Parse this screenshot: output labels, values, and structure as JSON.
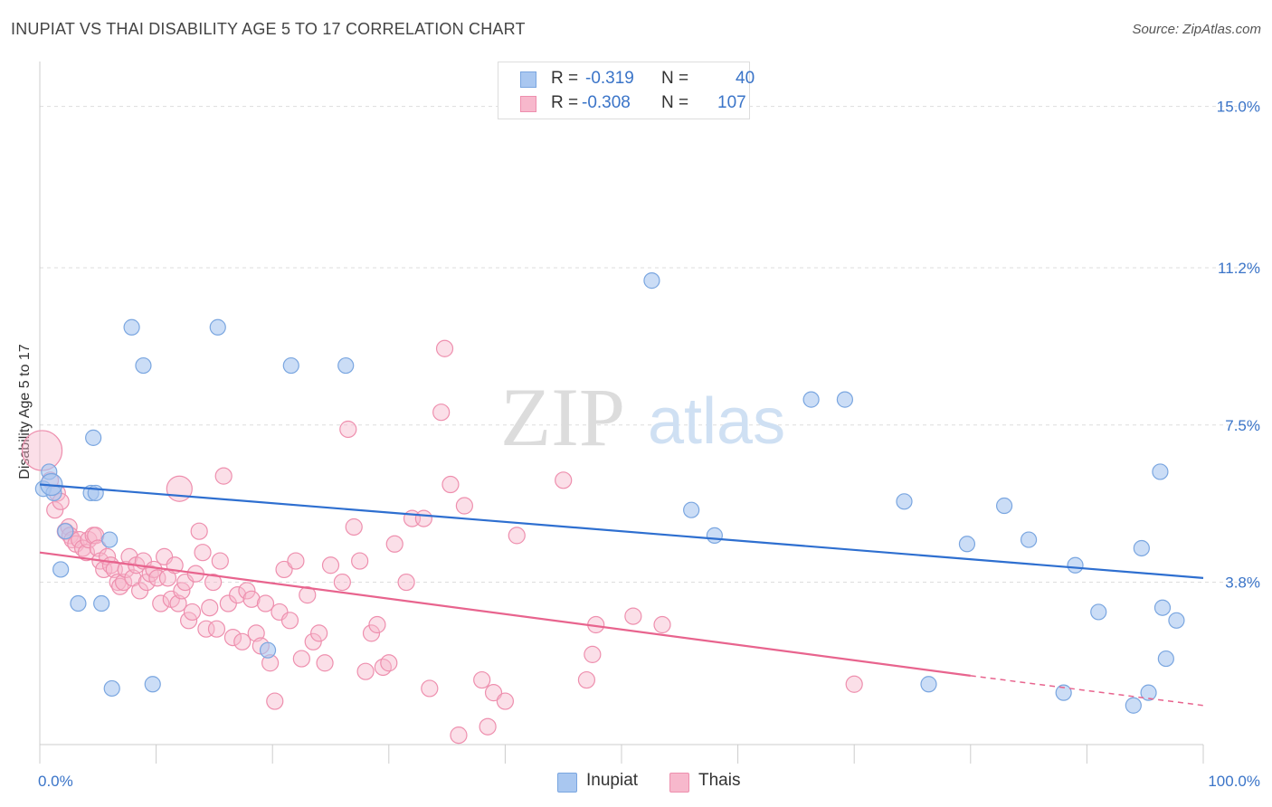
{
  "title": "INUPIAT VS THAI DISABILITY AGE 5 TO 17 CORRELATION CHART",
  "source": "Source: ZipAtlas.com",
  "watermark": {
    "zip": "ZIP",
    "atlas": "atlas"
  },
  "colors": {
    "inupiat_fill": "#a9c7f0",
    "inupiat_stroke": "#7aa6e0",
    "inupiat_line": "#2e6fd0",
    "thais_fill": "#f7b8cc",
    "thais_stroke": "#ee8fae",
    "thais_line": "#e8648e",
    "tick_label": "#3a74c8",
    "grid": "#dddddd"
  },
  "legend": {
    "rows": [
      {
        "r_label": "R =",
        "r_value": "-0.319",
        "n_label": "N =",
        "n_value": "40"
      },
      {
        "r_label": "R =",
        "r_value": "-0.308",
        "n_label": "N =",
        "n_value": "107"
      }
    ]
  },
  "chart_data": {
    "type": "scatter",
    "title": "INUPIAT VS THAI DISABILITY AGE 5 TO 17 CORRELATION CHART",
    "xlabel": "",
    "ylabel": "Disability Age 5 to 17",
    "xlim": [
      0,
      100
    ],
    "ylim": [
      0,
      15.8
    ],
    "x_tick_labels": [
      "0.0%",
      "100.0%"
    ],
    "y_ticks": [
      3.8,
      7.5,
      11.2,
      15.0
    ],
    "y_tick_labels": [
      "3.8%",
      "7.5%",
      "11.2%",
      "15.0%"
    ],
    "grid": true,
    "legend_position": "top-center",
    "series": [
      {
        "name": "Inupiat",
        "trend": {
          "x": [
            0,
            100
          ],
          "y": [
            6.1,
            3.9
          ]
        },
        "points": [
          [
            0.3,
            6.0
          ],
          [
            0.8,
            6.4
          ],
          [
            1.2,
            5.9
          ],
          [
            1.8,
            4.1
          ],
          [
            2.2,
            5.0
          ],
          [
            3.3,
            3.3
          ],
          [
            4.4,
            5.9
          ],
          [
            4.6,
            7.2
          ],
          [
            4.8,
            5.9
          ],
          [
            5.3,
            3.3
          ],
          [
            6.0,
            4.8
          ],
          [
            6.2,
            1.3
          ],
          [
            7.9,
            9.8
          ],
          [
            8.9,
            8.9
          ],
          [
            9.7,
            1.4
          ],
          [
            15.3,
            9.8
          ],
          [
            19.6,
            2.2
          ],
          [
            21.6,
            8.9
          ],
          [
            26.3,
            8.9
          ],
          [
            52.6,
            10.9
          ],
          [
            56.0,
            5.5
          ],
          [
            58.0,
            4.9
          ],
          [
            66.3,
            8.1
          ],
          [
            69.2,
            8.1
          ],
          [
            74.3,
            5.7
          ],
          [
            76.4,
            1.4
          ],
          [
            79.7,
            4.7
          ],
          [
            82.9,
            5.6
          ],
          [
            85.0,
            4.8
          ],
          [
            88.0,
            1.2
          ],
          [
            89.0,
            4.2
          ],
          [
            91.0,
            3.1
          ],
          [
            94.0,
            0.9
          ],
          [
            94.7,
            4.6
          ],
          [
            95.3,
            1.2
          ],
          [
            96.3,
            6.4
          ],
          [
            96.5,
            3.2
          ],
          [
            96.8,
            2.0
          ],
          [
            97.7,
            2.9
          ],
          [
            1.0,
            6.1
          ]
        ]
      },
      {
        "name": "Thais",
        "trend": {
          "x": [
            0,
            80
          ],
          "y": [
            4.5,
            1.6
          ]
        },
        "trend_dashed": {
          "x": [
            80,
            100
          ],
          "y": [
            1.6,
            0.9
          ]
        },
        "points": [
          [
            0.2,
            6.9
          ],
          [
            0.9,
            6.2
          ],
          [
            1.3,
            5.5
          ],
          [
            1.5,
            5.9
          ],
          [
            1.8,
            5.7
          ],
          [
            2.2,
            5.0
          ],
          [
            2.5,
            5.1
          ],
          [
            2.6,
            4.9
          ],
          [
            2.8,
            4.8
          ],
          [
            3.1,
            4.7
          ],
          [
            3.4,
            4.8
          ],
          [
            3.7,
            4.6
          ],
          [
            4.0,
            4.5
          ],
          [
            4.2,
            4.8
          ],
          [
            4.6,
            4.9
          ],
          [
            4.8,
            4.9
          ],
          [
            5.0,
            4.6
          ],
          [
            5.2,
            4.3
          ],
          [
            5.5,
            4.1
          ],
          [
            5.8,
            4.4
          ],
          [
            6.1,
            4.2
          ],
          [
            6.4,
            4.1
          ],
          [
            6.7,
            3.8
          ],
          [
            6.9,
            3.7
          ],
          [
            7.2,
            3.8
          ],
          [
            7.4,
            4.1
          ],
          [
            7.7,
            4.4
          ],
          [
            8.0,
            3.9
          ],
          [
            8.3,
            4.2
          ],
          [
            8.6,
            3.6
          ],
          [
            8.9,
            4.3
          ],
          [
            9.2,
            3.8
          ],
          [
            9.5,
            4.0
          ],
          [
            9.8,
            4.1
          ],
          [
            10.1,
            3.9
          ],
          [
            10.4,
            3.3
          ],
          [
            10.7,
            4.4
          ],
          [
            11.0,
            3.9
          ],
          [
            11.3,
            3.4
          ],
          [
            11.6,
            4.2
          ],
          [
            11.9,
            3.3
          ],
          [
            12.2,
            3.6
          ],
          [
            12.5,
            3.8
          ],
          [
            12.8,
            2.9
          ],
          [
            13.1,
            3.1
          ],
          [
            13.4,
            4.0
          ],
          [
            13.7,
            5.0
          ],
          [
            14.0,
            4.5
          ],
          [
            14.3,
            2.7
          ],
          [
            14.6,
            3.2
          ],
          [
            14.9,
            3.8
          ],
          [
            15.2,
            2.7
          ],
          [
            15.5,
            4.3
          ],
          [
            15.8,
            6.3
          ],
          [
            16.2,
            3.3
          ],
          [
            16.6,
            2.5
          ],
          [
            17.0,
            3.5
          ],
          [
            17.4,
            2.4
          ],
          [
            17.8,
            3.6
          ],
          [
            18.2,
            3.4
          ],
          [
            18.6,
            2.6
          ],
          [
            19.0,
            2.3
          ],
          [
            19.4,
            3.3
          ],
          [
            19.8,
            1.9
          ],
          [
            20.2,
            1.0
          ],
          [
            20.6,
            3.1
          ],
          [
            21.0,
            4.1
          ],
          [
            21.5,
            2.9
          ],
          [
            22.0,
            4.3
          ],
          [
            22.5,
            2.0
          ],
          [
            23.0,
            3.5
          ],
          [
            23.5,
            2.4
          ],
          [
            24.0,
            2.6
          ],
          [
            24.5,
            1.9
          ],
          [
            25.0,
            4.2
          ],
          [
            26.0,
            3.8
          ],
          [
            26.5,
            7.4
          ],
          [
            27.0,
            5.1
          ],
          [
            27.5,
            4.3
          ],
          [
            28.0,
            1.7
          ],
          [
            28.5,
            2.6
          ],
          [
            29.0,
            2.8
          ],
          [
            29.5,
            1.8
          ],
          [
            30.0,
            1.9
          ],
          [
            30.5,
            4.7
          ],
          [
            31.5,
            3.8
          ],
          [
            32.0,
            5.3
          ],
          [
            33.0,
            5.3
          ],
          [
            33.5,
            1.3
          ],
          [
            34.5,
            7.8
          ],
          [
            34.8,
            9.3
          ],
          [
            35.3,
            6.1
          ],
          [
            36.0,
            0.2
          ],
          [
            36.5,
            5.6
          ],
          [
            38.0,
            1.5
          ],
          [
            38.5,
            0.4
          ],
          [
            39.0,
            1.2
          ],
          [
            40.0,
            1.0
          ],
          [
            41.0,
            4.9
          ],
          [
            45.0,
            6.2
          ],
          [
            47.0,
            1.5
          ],
          [
            47.5,
            2.1
          ],
          [
            47.8,
            2.8
          ],
          [
            51.0,
            3.0
          ],
          [
            53.5,
            2.8
          ],
          [
            70.0,
            1.4
          ],
          [
            12.0,
            6.0
          ]
        ]
      }
    ]
  },
  "bottom_legend": [
    {
      "label": "Inupiat"
    },
    {
      "label": "Thais"
    }
  ]
}
